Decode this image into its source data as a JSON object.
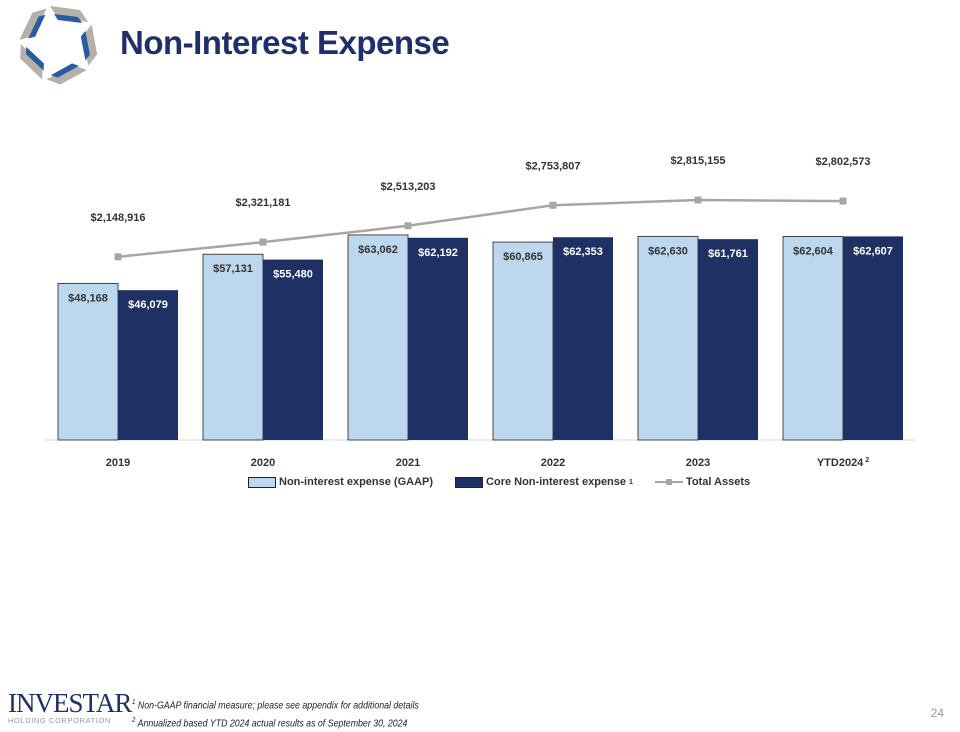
{
  "header": {
    "title": "Non-Interest Expense"
  },
  "footer": {
    "brand": "INVESTAR",
    "brand_sub": "HOLDING CORPORATION",
    "notes": [
      {
        "mark": "1",
        "text": "Non-GAAP financial measure; please see appendix for additional details"
      },
      {
        "mark": "2",
        "text": "Annualized based YTD 2024 actual results as of September 30, 2024"
      }
    ],
    "page_number": "24"
  },
  "colors": {
    "gaap": "#bdd7ee",
    "core": "#1f3164",
    "assets": "#a6a6a6",
    "title": "#1f2f6b"
  },
  "chart_data": {
    "type": "bar",
    "categories": [
      "2019",
      "2020",
      "2021",
      "2022",
      "2023",
      "YTD2024"
    ],
    "category_superscripts": [
      "",
      "",
      "",
      "",
      "",
      "2"
    ],
    "series": [
      {
        "name": "Non-interest expense (GAAP)",
        "type": "bar",
        "values": [
          48168,
          57131,
          63062,
          60865,
          62630,
          62604
        ],
        "labels": [
          "$48,168",
          "$57,131",
          "$63,062",
          "$60,865",
          "$62,630",
          "$62,604"
        ]
      },
      {
        "name": "Core Non-interest expense",
        "name_superscript": "1",
        "type": "bar",
        "values": [
          46079,
          55480,
          62192,
          62353,
          61761,
          62607
        ],
        "labels": [
          "$46,079",
          "$55,480",
          "$62,192",
          "$62,353",
          "$61,761",
          "$62,607"
        ]
      },
      {
        "name": "Total Assets",
        "type": "line",
        "axis": "secondary",
        "values": [
          2148916,
          2321181,
          2513203,
          2753807,
          2815155,
          2802573
        ],
        "labels": [
          "$2,148,916",
          "$2,321,181",
          "$2,513,203",
          "$2,753,807",
          "$2,815,155",
          "$2,802,573"
        ]
      }
    ],
    "ylim": [
      0,
      135000
    ],
    "ylim_secondary": [
      0,
      5150000
    ],
    "grid": false,
    "legend": "bottom"
  }
}
